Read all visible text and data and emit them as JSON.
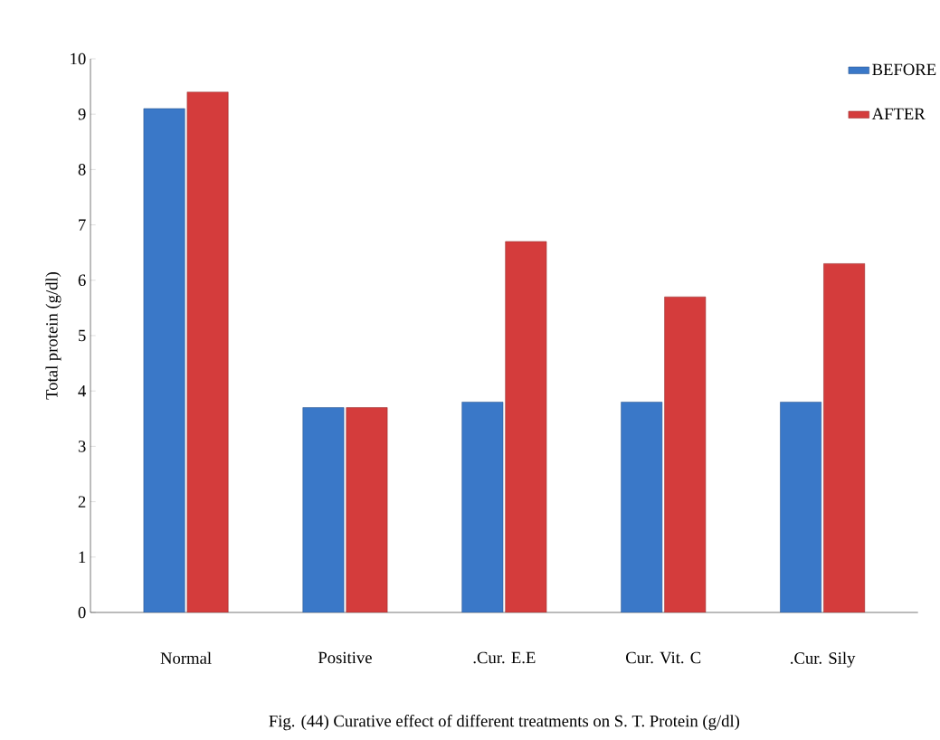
{
  "chart_data": {
    "type": "bar",
    "title": "Fig. (44) Curative effect of different treatments on S. T. Protein (g/dl)",
    "ylabel": "Total protein (g/dl)",
    "categories": [
      "Normal",
      "Positive",
      ".Cur. E.E",
      "Cur. Vit. C",
      ".Cur. Sily"
    ],
    "series": [
      {
        "name": "BEFORE",
        "color": "#3a78c8",
        "values": [
          9.1,
          3.7,
          3.8,
          3.8,
          3.8
        ]
      },
      {
        "name": "AFTER",
        "color": "#d43c3c",
        "values": [
          9.4,
          3.7,
          6.7,
          5.7,
          6.3
        ]
      }
    ],
    "ylim": [
      0,
      10
    ],
    "yticks": [
      0,
      1,
      2,
      3,
      4,
      5,
      6,
      7,
      8,
      9,
      10
    ],
    "legend": "top right"
  }
}
